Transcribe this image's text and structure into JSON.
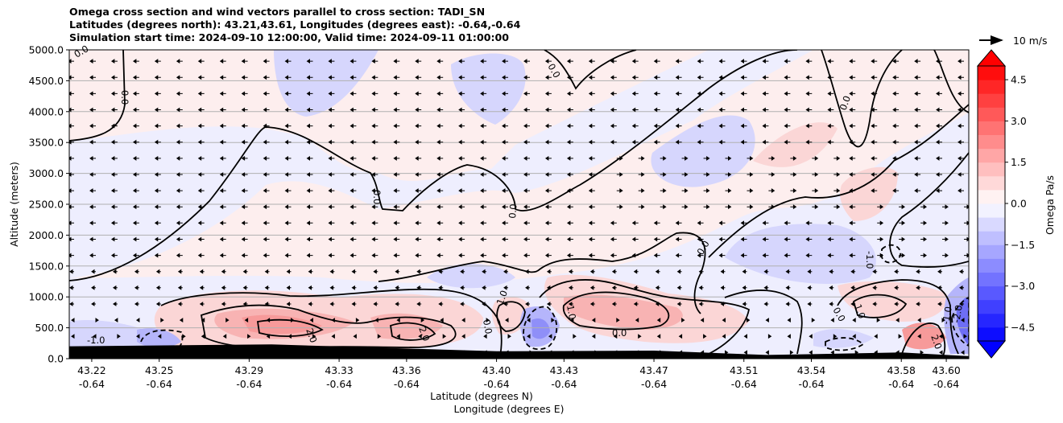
{
  "title_lines": [
    "Omega cross section and wind vectors parallel to cross section: TADI_SN",
    "Latitudes (degrees north): 43.21,43.61, Longitudes (degrees east): -0.64,-0.64",
    "Simulation start time: 2024-09-10 12:00:00, Valid time: 2024-09-11 01:00:00"
  ],
  "quiver_key_label": "10 m/s",
  "colors": {
    "negative_max": "#0000ff",
    "neutral": "#ffffff",
    "positive_max": "#ff0000",
    "terrain": "#000000",
    "contour": "#000000",
    "grid": "#b0b0b0"
  },
  "chart_data": {
    "type": "heatmap",
    "subtype": "cross-section contourf with contour lines and wind vectors",
    "xlabel": "Latitude (degrees N)",
    "xlabel2": "Longitude (degrees E)",
    "ylabel": "Altitude (meters)",
    "ylim": [
      0,
      5000
    ],
    "xlim": [
      43.21,
      43.61
    ],
    "yticks": [
      "0.0",
      "500.0",
      "1000.0",
      "1500.0",
      "2000.0",
      "2500.0",
      "3000.0",
      "3500.0",
      "4000.0",
      "4500.0",
      "5000.0"
    ],
    "xticks": [
      {
        "lat": "43.22",
        "lon": "-0.64"
      },
      {
        "lat": "43.25",
        "lon": "-0.64"
      },
      {
        "lat": "43.29",
        "lon": "-0.64"
      },
      {
        "lat": "43.33",
        "lon": "-0.64"
      },
      {
        "lat": "43.36",
        "lon": "-0.64"
      },
      {
        "lat": "43.40",
        "lon": "-0.64"
      },
      {
        "lat": "43.43",
        "lon": "-0.64"
      },
      {
        "lat": "43.47",
        "lon": "-0.64"
      },
      {
        "lat": "43.51",
        "lon": "-0.64"
      },
      {
        "lat": "43.54",
        "lon": "-0.64"
      },
      {
        "lat": "43.58",
        "lon": "-0.64"
      },
      {
        "lat": "43.60",
        "lon": "-0.64"
      }
    ],
    "grid": "horizontal lines at y ticks",
    "colorbar": {
      "label": "Omega Pa/s",
      "range": [
        -5.0,
        5.0
      ],
      "step": 0.5,
      "extend": "both",
      "ticks": [
        "−4.5",
        "−3.0",
        "−1.5",
        "0.0",
        "1.5",
        "3.0",
        "4.5"
      ]
    },
    "contour_labels": [
      {
        "text": "0.0"
      },
      {
        "text": "0.0"
      },
      {
        "text": "0.0"
      },
      {
        "text": "0.0"
      },
      {
        "text": "0.0"
      },
      {
        "text": "0.0"
      },
      {
        "text": "0.0"
      },
      {
        "text": "-1.0"
      },
      {
        "text": "-1.0"
      },
      {
        "text": "2.0"
      },
      {
        "text": "2.0"
      },
      {
        "text": "1.0"
      },
      {
        "text": "1.0"
      },
      {
        "text": "0.0"
      },
      {
        "text": "1.0"
      },
      {
        "text": "2.0"
      },
      {
        "text": "-2.0"
      },
      {
        "text": "-1.0"
      },
      {
        "text": "0.0"
      },
      {
        "text": "0.0"
      }
    ],
    "wind_direction_summary": "northward (left-pointing arrows on this axis orientation) aloft above ~1500 m; weak, mixed vectors near the surface",
    "terrain": [
      {
        "lat": 43.21,
        "alt": 200
      },
      {
        "lat": 43.3,
        "alt": 230
      },
      {
        "lat": 43.4,
        "alt": 120
      },
      {
        "lat": 43.47,
        "alt": 130
      },
      {
        "lat": 43.52,
        "alt": 60
      },
      {
        "lat": 43.58,
        "alt": 100
      },
      {
        "lat": 43.61,
        "alt": 40
      }
    ]
  }
}
